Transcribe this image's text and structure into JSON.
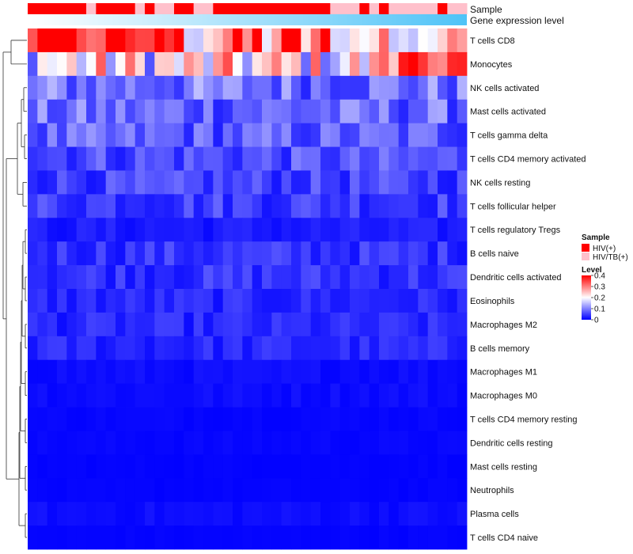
{
  "chart_data": {
    "type": "heatmap",
    "annotation_labels": {
      "sample": "Sample",
      "gene_expression": "Gene expression level"
    },
    "rows": [
      "T cells CD8",
      "Monocytes",
      "NK cells activated",
      "Mast cells activated",
      "T cells gamma delta",
      "T cells CD4 memory activated",
      "NK cells resting",
      "T cells follicular helper",
      "T cells regulatory  Tregs",
      "B cells naive",
      "Dendritic cells activated",
      "Eosinophils",
      "Macrophages M2",
      "B cells memory",
      "Macrophages M1",
      "Macrophages M0",
      "T cells CD4 memory resting",
      "Dendritic cells resting",
      "Mast cells resting",
      "Neutrophils",
      "Plasma cells",
      "T cells CD4 naive"
    ],
    "columns_count": 45,
    "sample_groups": [
      "HIV(+)",
      "HIV(+)",
      "HIV(+)",
      "HIV(+)",
      "HIV(+)",
      "HIV(+)",
      "HIV/TB(+)",
      "HIV(+)",
      "HIV(+)",
      "HIV(+)",
      "HIV(+)",
      "HIV/TB(+)",
      "HIV(+)",
      "HIV/TB(+)",
      "HIV/TB(+)",
      "HIV(+)",
      "HIV(+)",
      "HIV/TB(+)",
      "HIV/TB(+)",
      "HIV(+)",
      "HIV(+)",
      "HIV(+)",
      "HIV(+)",
      "HIV(+)",
      "HIV(+)",
      "HIV(+)",
      "HIV(+)",
      "HIV(+)",
      "HIV(+)",
      "HIV(+)",
      "HIV(+)",
      "HIV/TB(+)",
      "HIV/TB(+)",
      "HIV/TB(+)",
      "HIV(+)",
      "HIV/TB(+)",
      "HIV(+)",
      "HIV/TB(+)",
      "HIV/TB(+)",
      "HIV/TB(+)",
      "HIV/TB(+)",
      "HIV/TB(+)",
      "HIV(+)",
      "HIV/TB(+)",
      "HIV/TB(+)"
    ],
    "row_means": [
      0.3,
      0.2,
      0.09,
      0.08,
      0.07,
      0.06,
      0.05,
      0.05,
      0.02,
      0.04,
      0.04,
      0.03,
      0.03,
      0.03,
      0.01,
      0.01,
      0.005,
      0.005,
      0.003,
      0.003,
      0.01,
      0.003
    ],
    "legend": {
      "sample_title": "Sample",
      "sample_items": [
        {
          "label": "HIV(+)",
          "color": "#ff0000"
        },
        {
          "label": "HIV/TB(+)",
          "color": "#ffc0cb"
        }
      ],
      "level_title": "Level",
      "level_ticks": [
        "0.4",
        "0.3",
        "0.2",
        "0.1",
        "0"
      ],
      "level_min": 0,
      "level_max": 0.4,
      "low_color": "#0000ff",
      "mid_color": "#ffffff",
      "high_color": "#ff0000"
    },
    "gene_expression_gradient": [
      "#ffffff",
      "#4fc3f7"
    ]
  }
}
